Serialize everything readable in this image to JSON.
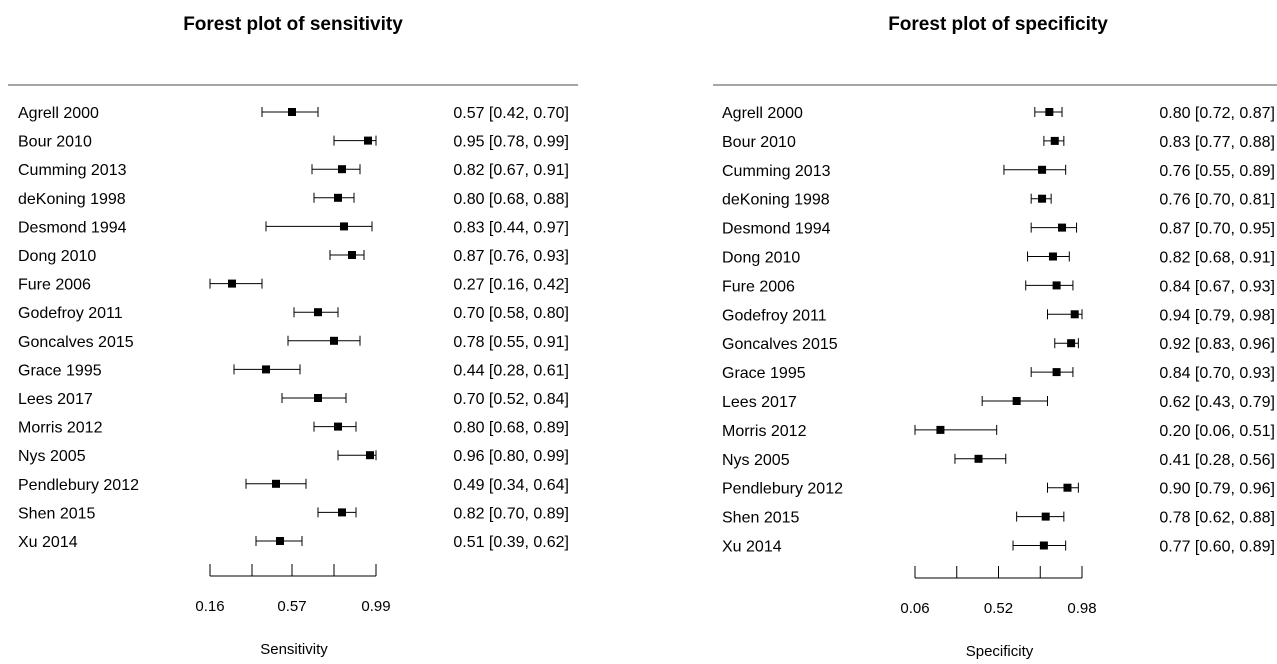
{
  "chart_data": [
    {
      "type": "forest",
      "title": "Forest plot of sensitivity",
      "xlabel": "Sensitivity",
      "xlim": [
        0.16,
        0.99
      ],
      "ticks": [
        0.16,
        0.37,
        0.57,
        0.78,
        0.99
      ],
      "tick_labels": [
        "0.16",
        "",
        "0.57",
        "",
        "0.99"
      ],
      "studies": [
        {
          "name": "Agrell 2000",
          "est": 0.57,
          "lo": 0.42,
          "hi": 0.7,
          "label": "0.57 [0.42, 0.70]"
        },
        {
          "name": "Bour 2010",
          "est": 0.95,
          "lo": 0.78,
          "hi": 0.99,
          "label": "0.95 [0.78, 0.99]"
        },
        {
          "name": "Cumming 2013",
          "est": 0.82,
          "lo": 0.67,
          "hi": 0.91,
          "label": "0.82 [0.67, 0.91]"
        },
        {
          "name": "deKoning 1998",
          "est": 0.8,
          "lo": 0.68,
          "hi": 0.88,
          "label": "0.80 [0.68, 0.88]"
        },
        {
          "name": "Desmond 1994",
          "est": 0.83,
          "lo": 0.44,
          "hi": 0.97,
          "label": "0.83 [0.44, 0.97]"
        },
        {
          "name": "Dong 2010",
          "est": 0.87,
          "lo": 0.76,
          "hi": 0.93,
          "label": "0.87 [0.76, 0.93]"
        },
        {
          "name": "Fure 2006",
          "est": 0.27,
          "lo": 0.16,
          "hi": 0.42,
          "label": "0.27 [0.16, 0.42]"
        },
        {
          "name": "Godefroy 2011",
          "est": 0.7,
          "lo": 0.58,
          "hi": 0.8,
          "label": "0.70 [0.58, 0.80]"
        },
        {
          "name": "Goncalves 2015",
          "est": 0.78,
          "lo": 0.55,
          "hi": 0.91,
          "label": "0.78 [0.55, 0.91]"
        },
        {
          "name": "Grace 1995",
          "est": 0.44,
          "lo": 0.28,
          "hi": 0.61,
          "label": "0.44 [0.28, 0.61]"
        },
        {
          "name": "Lees 2017",
          "est": 0.7,
          "lo": 0.52,
          "hi": 0.84,
          "label": "0.70 [0.52, 0.84]"
        },
        {
          "name": "Morris 2012",
          "est": 0.8,
          "lo": 0.68,
          "hi": 0.89,
          "label": "0.80 [0.68, 0.89]"
        },
        {
          "name": "Nys 2005",
          "est": 0.96,
          "lo": 0.8,
          "hi": 0.99,
          "label": "0.96 [0.80, 0.99]"
        },
        {
          "name": "Pendlebury 2012",
          "est": 0.49,
          "lo": 0.34,
          "hi": 0.64,
          "label": "0.49 [0.34, 0.64]"
        },
        {
          "name": "Shen 2015",
          "est": 0.82,
          "lo": 0.7,
          "hi": 0.89,
          "label": "0.82 [0.70, 0.89]"
        },
        {
          "name": "Xu 2014",
          "est": 0.51,
          "lo": 0.39,
          "hi": 0.62,
          "label": "0.51 [0.39, 0.62]"
        }
      ]
    },
    {
      "type": "forest",
      "title": "Forest plot of specificity",
      "xlabel": "Specificity",
      "xlim": [
        0.06,
        0.98
      ],
      "ticks": [
        0.06,
        0.29,
        0.52,
        0.75,
        0.98
      ],
      "tick_labels": [
        "0.06",
        "",
        "0.52",
        "",
        "0.98"
      ],
      "studies": [
        {
          "name": "Agrell 2000",
          "est": 0.8,
          "lo": 0.72,
          "hi": 0.87,
          "label": "0.80 [0.72, 0.87]"
        },
        {
          "name": "Bour 2010",
          "est": 0.83,
          "lo": 0.77,
          "hi": 0.88,
          "label": "0.83 [0.77, 0.88]"
        },
        {
          "name": "Cumming 2013",
          "est": 0.76,
          "lo": 0.55,
          "hi": 0.89,
          "label": "0.76 [0.55, 0.89]"
        },
        {
          "name": "deKoning 1998",
          "est": 0.76,
          "lo": 0.7,
          "hi": 0.81,
          "label": "0.76 [0.70, 0.81]"
        },
        {
          "name": "Desmond 1994",
          "est": 0.87,
          "lo": 0.7,
          "hi": 0.95,
          "label": "0.87 [0.70, 0.95]"
        },
        {
          "name": "Dong 2010",
          "est": 0.82,
          "lo": 0.68,
          "hi": 0.91,
          "label": "0.82 [0.68, 0.91]"
        },
        {
          "name": "Fure 2006",
          "est": 0.84,
          "lo": 0.67,
          "hi": 0.93,
          "label": "0.84 [0.67, 0.93]"
        },
        {
          "name": "Godefroy 2011",
          "est": 0.94,
          "lo": 0.79,
          "hi": 0.98,
          "label": "0.94 [0.79, 0.98]"
        },
        {
          "name": "Goncalves 2015",
          "est": 0.92,
          "lo": 0.83,
          "hi": 0.96,
          "label": "0.92 [0.83, 0.96]"
        },
        {
          "name": "Grace 1995",
          "est": 0.84,
          "lo": 0.7,
          "hi": 0.93,
          "label": "0.84 [0.70, 0.93]"
        },
        {
          "name": "Lees 2017",
          "est": 0.62,
          "lo": 0.43,
          "hi": 0.79,
          "label": "0.62 [0.43, 0.79]"
        },
        {
          "name": "Morris 2012",
          "est": 0.2,
          "lo": 0.06,
          "hi": 0.51,
          "label": "0.20 [0.06, 0.51]"
        },
        {
          "name": "Nys 2005",
          "est": 0.41,
          "lo": 0.28,
          "hi": 0.56,
          "label": "0.41 [0.28, 0.56]"
        },
        {
          "name": "Pendlebury 2012",
          "est": 0.9,
          "lo": 0.79,
          "hi": 0.96,
          "label": "0.90 [0.79, 0.96]"
        },
        {
          "name": "Shen 2015",
          "est": 0.78,
          "lo": 0.62,
          "hi": 0.88,
          "label": "0.78 [0.62, 0.88]"
        },
        {
          "name": "Xu 2014",
          "est": 0.77,
          "lo": 0.6,
          "hi": 0.89,
          "label": "0.77 [0.60, 0.89]"
        }
      ]
    }
  ]
}
